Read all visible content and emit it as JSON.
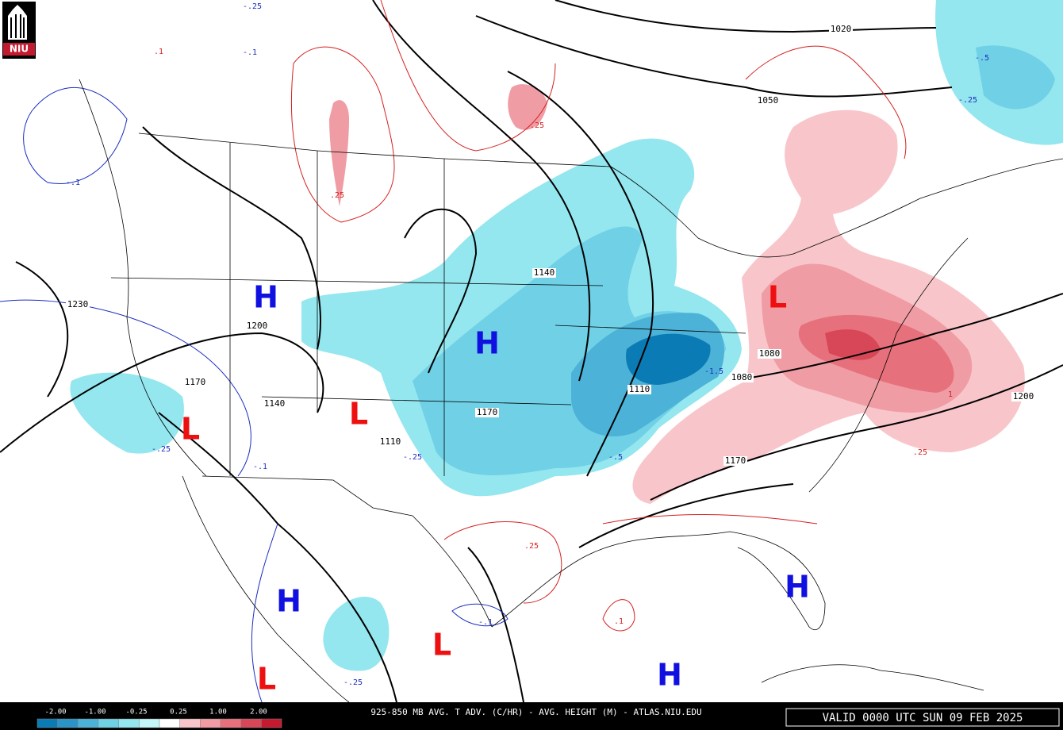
{
  "logo": "NIU",
  "footer": {
    "title": "925-850 MB AVG. T ADV. (C/HR) - AVG. HEIGHT (M) - ATLAS.NIU.EDU",
    "valid": "VALID 0000 UTC SUN 09 FEB 2025"
  },
  "legend": {
    "labels": [
      "-2.00",
      "-1.00",
      "-0.25",
      "0.25",
      "1.00",
      "2.00"
    ],
    "colors": [
      "#0b7bb5",
      "#2b93c5",
      "#4cb2d7",
      "#6fd0e6",
      "#94e6ef",
      "#c4f7f8",
      "#ffffff",
      "#f8c6ca",
      "#f09ca4",
      "#e6717c",
      "#d84758",
      "#c41a30"
    ]
  },
  "height_labels": [
    "1020",
    "1050",
    "1140",
    "1200",
    "1230",
    "1170",
    "1140",
    "1110",
    "1170",
    "1110",
    "1080",
    "1080",
    "1170",
    "1200"
  ],
  "advection_labels": [
    "-.25",
    "-.1",
    ".1",
    ".25",
    "-.1",
    ".25",
    "-.5",
    "-.25",
    "-.25",
    "-.1",
    "-.25",
    "-.5",
    "-1.5",
    ".25",
    "1",
    ".25",
    ".1",
    "-.1",
    "-.25"
  ],
  "centers": [
    "H",
    "H",
    "L",
    "L",
    "L",
    "H",
    "H",
    "L",
    "L",
    "H"
  ]
}
